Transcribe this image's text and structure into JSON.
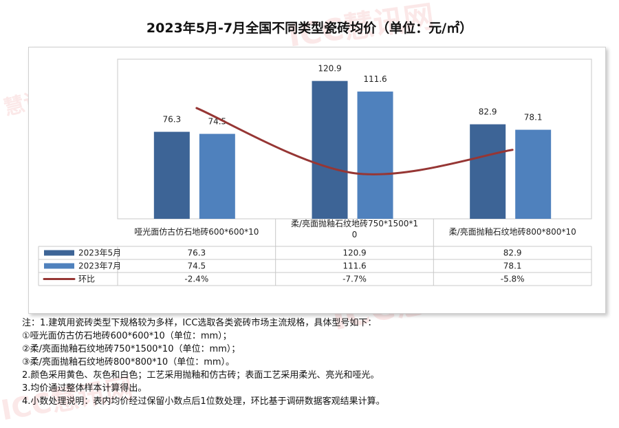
{
  "page": {
    "title": "2023年5月-7月全国不同类型瓷砖均价（单位：元/㎡）",
    "watermarks": [
      "ICC慧讯网",
      "慧讯网",
      "ICC慧讯网",
      "ICC慧讯网"
    ]
  },
  "chart_data": {
    "type": "bar",
    "title": "2023年5月-7月全国不同类型瓷砖均价（单位：元/㎡）",
    "categories": [
      "哑光面仿古仿石地砖600*600*10",
      "柔/亮面抛釉石纹地砖750*1500*10",
      "柔/亮面抛釉石纹地砖800*800*10"
    ],
    "category_lines": [
      [
        "哑光面仿古仿石地砖600*600*10"
      ],
      [
        "柔/亮面抛釉石纹地砖750*1500*1",
        "0"
      ],
      [
        "柔/亮面抛釉石纹地砖800*800*10"
      ]
    ],
    "series": [
      {
        "name": "2023年5月",
        "values": [
          76.3,
          120.9,
          82.9
        ],
        "value_labels": [
          "76.3",
          "120.9",
          "82.9"
        ],
        "color": "#3d6496"
      },
      {
        "name": "2023年7月",
        "values": [
          74.5,
          111.6,
          78.1
        ],
        "value_labels": [
          "74.5",
          "111.6",
          "78.1"
        ],
        "color": "#4f81bd"
      }
    ],
    "line_series": {
      "name": "环比",
      "values": [
        -2.4,
        -7.7,
        -5.8
      ],
      "labels": [
        "-2.4%",
        "-7.7%",
        "-5.8%"
      ],
      "color": "#963634"
    },
    "legend": "data-table",
    "grid": false,
    "data_table": true
  },
  "notes": [
    "注：1.建筑用瓷砖类型下规格较为多样，ICC选取各类瓷砖市场主流规格，具体型号如下：",
    "①哑光面仿古仿石地砖600*600*10（单位：mm）；",
    "②柔/亮面抛釉石纹地砖750*1500*10（单位：mm）；",
    "③柔/亮面抛釉石纹地砖800*800*10（单位：mm）。",
    "2.颜色采用黄色、灰色和白色；工艺采用抛釉和仿古砖；表面工艺采用柔光、亮光和哑光。",
    "3.均价通过整体样本计算得出。",
    "4.小数处理说明：表内均价经过保留小数点后1位数处理，环比基于调研数据客观结果计算。"
  ]
}
